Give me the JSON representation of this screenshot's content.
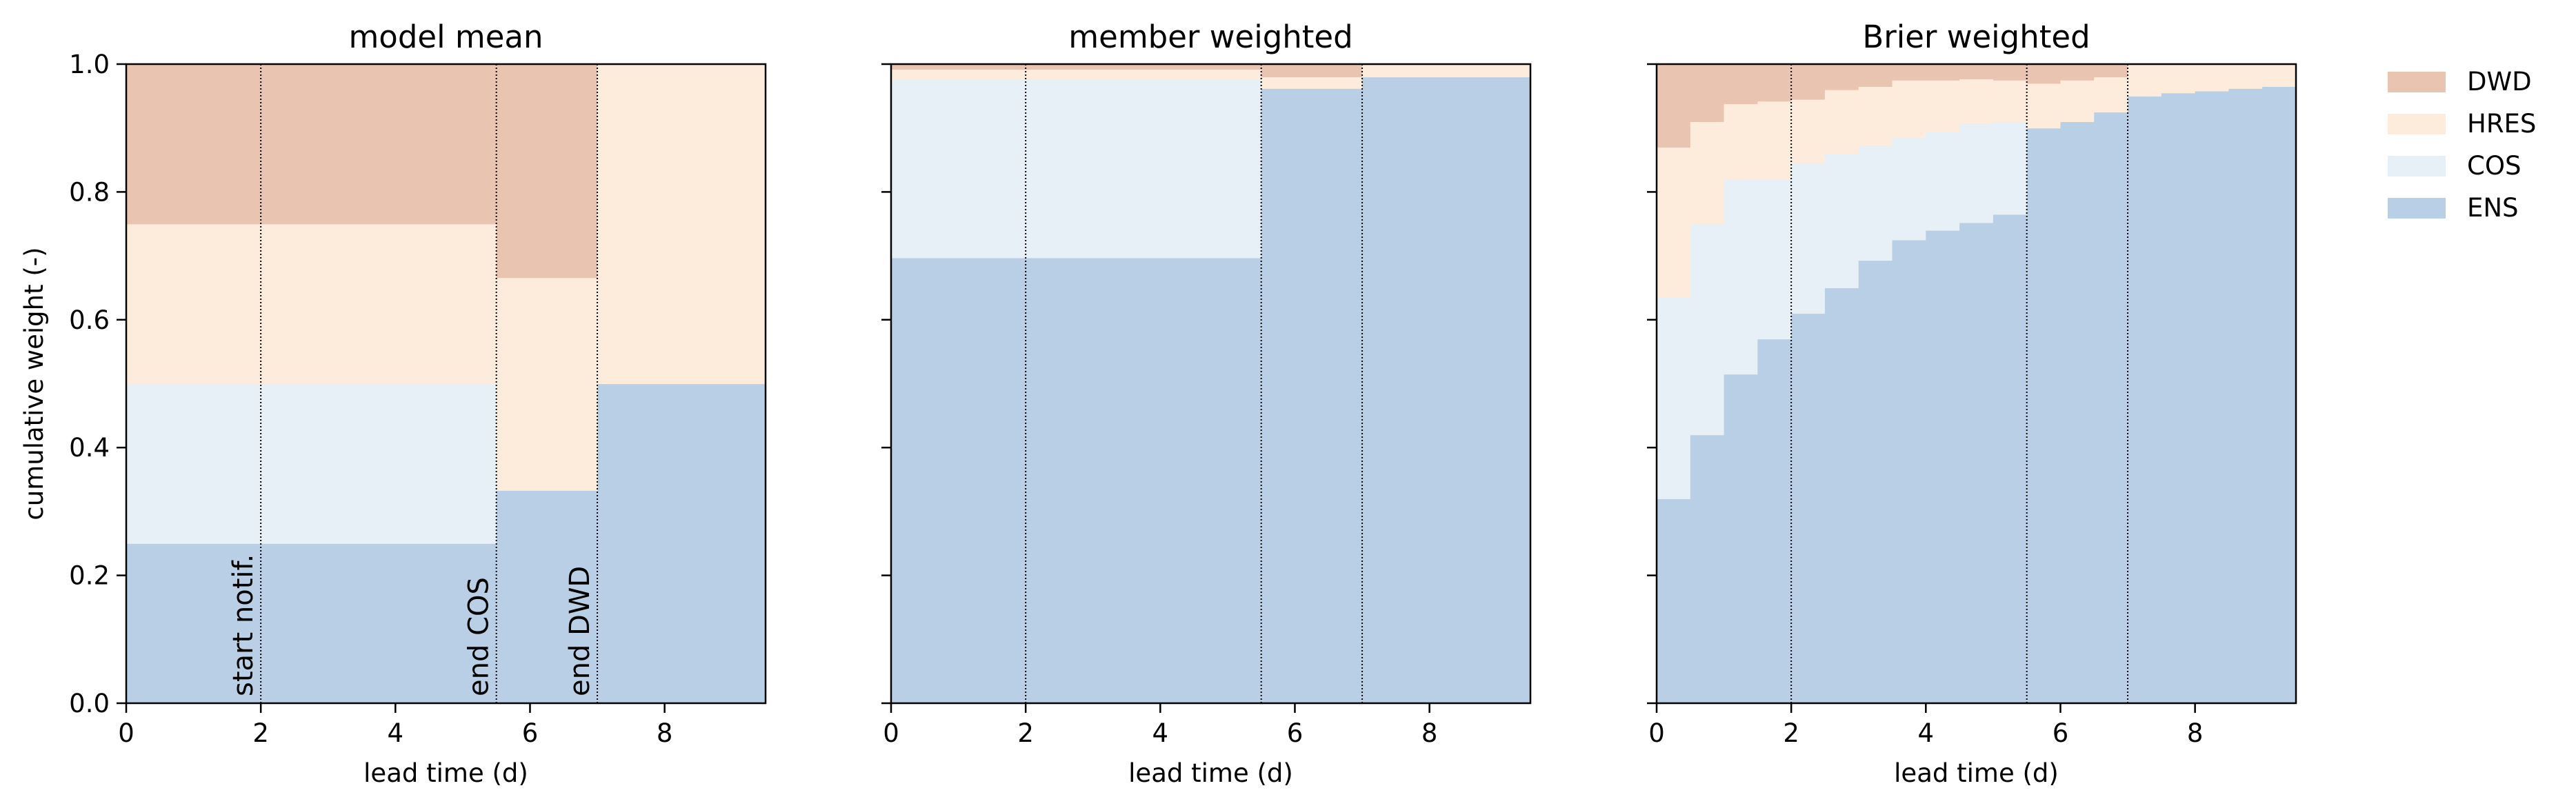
{
  "chart_data": {
    "type": "area",
    "ylabel": "cumulative weight (-)",
    "ylim": [
      0,
      1
    ],
    "yticks": [
      "0.0",
      "0.2",
      "0.4",
      "0.6",
      "0.8",
      "1.0"
    ],
    "xlabel": "lead time (d)",
    "xlim": [
      0,
      9.5
    ],
    "xticks": [
      "0",
      "2",
      "4",
      "6",
      "8"
    ],
    "legend_position": "right",
    "legend": [
      {
        "name": "DWD",
        "color": "#e9c4b1"
      },
      {
        "name": "HRES",
        "color": "#fdecdc"
      },
      {
        "name": "COS",
        "color": "#e7eff7"
      },
      {
        "name": "ENS",
        "color": "#b9cfe5"
      }
    ],
    "stack_order": [
      "ENS",
      "COS",
      "HRES",
      "DWD"
    ],
    "vlines": [
      2,
      5.5,
      7
    ],
    "annotations": [
      {
        "text": "start notif.",
        "x": 2
      },
      {
        "text": "end COS",
        "x": 5.5
      },
      {
        "text": "end DWD",
        "x": 7
      }
    ],
    "panels": [
      {
        "title": "model mean",
        "x_edges": [
          0,
          5.5,
          7,
          9.5
        ],
        "series": [
          {
            "name": "ENS",
            "values": [
              0.25,
              0.333,
              0.5
            ]
          },
          {
            "name": "COS",
            "values": [
              0.25,
              0,
              0
            ]
          },
          {
            "name": "HRES",
            "values": [
              0.25,
              0.333,
              0.5
            ]
          },
          {
            "name": "DWD",
            "values": [
              0.25,
              0.334,
              0
            ]
          }
        ]
      },
      {
        "title": "member weighted",
        "x_edges": [
          0,
          5.5,
          7,
          9.5
        ],
        "series": [
          {
            "name": "ENS",
            "values": [
              0.697,
              0.962,
              0.98
            ]
          },
          {
            "name": "COS",
            "values": [
              0.28,
              0,
              0
            ]
          },
          {
            "name": "HRES",
            "values": [
              0.015,
              0.018,
              0.02
            ]
          },
          {
            "name": "DWD",
            "values": [
              0.008,
              0.02,
              0
            ]
          }
        ]
      },
      {
        "title": "Brier weighted",
        "x_edges": [
          0,
          0.5,
          1,
          1.5,
          2,
          2.5,
          3,
          3.5,
          4,
          4.5,
          5,
          5.5,
          6,
          6.5,
          7,
          7.5,
          8,
          8.5,
          9,
          9.5
        ],
        "series": [
          {
            "name": "ENS",
            "values": [
              0.32,
              0.42,
              0.515,
              0.57,
              0.61,
              0.65,
              0.693,
              0.725,
              0.74,
              0.752,
              0.765,
              0.9,
              0.91,
              0.925,
              0.95,
              0.955,
              0.958,
              0.962,
              0.965
            ]
          },
          {
            "name": "COS",
            "values": [
              0.315,
              0.33,
              0.305,
              0.25,
              0.235,
              0.21,
              0.18,
              0.16,
              0.155,
              0.155,
              0.145,
              0,
              0,
              0,
              0,
              0,
              0,
              0,
              0
            ]
          },
          {
            "name": "HRES",
            "values": [
              0.235,
              0.16,
              0.118,
              0.122,
              0.1,
              0.1,
              0.092,
              0.09,
              0.08,
              0.07,
              0.065,
              0.07,
              0.065,
              0.055,
              0.05,
              0.045,
              0.042,
              0.038,
              0.035
            ]
          },
          {
            "name": "DWD",
            "values": [
              0.13,
              0.09,
              0.062,
              0.058,
              0.055,
              0.04,
              0.035,
              0.025,
              0.025,
              0.023,
              0.025,
              0.03,
              0.025,
              0.02,
              0,
              0,
              0,
              0,
              0
            ]
          }
        ]
      }
    ]
  }
}
